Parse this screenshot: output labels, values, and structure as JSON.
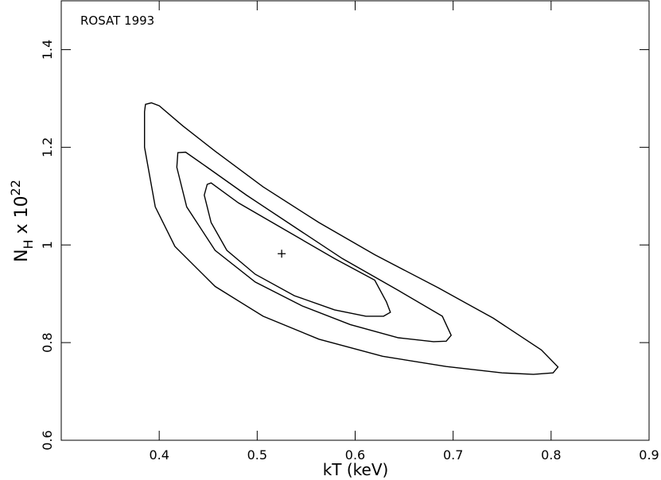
{
  "chart_data": {
    "type": "contour",
    "annotation": "ROSAT 1993",
    "xlabel": "kT (keV)",
    "ylabel": {
      "base": "N",
      "sub": "H",
      "mid": " x 10",
      "sup": "22"
    },
    "xlim": [
      0.3,
      0.9
    ],
    "xticks": [
      0.4,
      0.5,
      0.6,
      0.7,
      0.8,
      0.9
    ],
    "ylim": [
      0.6,
      1.5
    ],
    "yticks": [
      0.6,
      0.8,
      1,
      1.2,
      1.4
    ],
    "color": "#000000",
    "contours": [
      {
        "x": [
          0.386,
          0.392,
          0.4,
          0.424,
          0.457,
          0.506,
          0.563,
          0.62,
          0.685,
          0.741,
          0.79,
          0.807,
          0.802,
          0.782,
          0.75,
          0.693,
          0.628,
          0.563,
          0.506,
          0.457,
          0.416,
          0.396,
          0.385,
          0.385
        ],
        "y": [
          1.288,
          1.291,
          1.285,
          1.244,
          1.192,
          1.119,
          1.046,
          0.98,
          0.912,
          0.85,
          0.785,
          0.75,
          0.738,
          0.735,
          0.738,
          0.751,
          0.772,
          0.807,
          0.854,
          0.915,
          0.997,
          1.078,
          1.2,
          1.273
        ]
      },
      {
        "x": [
          0.419,
          0.427,
          0.449,
          0.489,
          0.538,
          0.587,
          0.644,
          0.689,
          0.698,
          0.693,
          0.68,
          0.644,
          0.595,
          0.546,
          0.498,
          0.457,
          0.428,
          0.418
        ],
        "y": [
          1.189,
          1.19,
          1.159,
          1.102,
          1.037,
          0.972,
          0.907,
          0.854,
          0.815,
          0.803,
          0.802,
          0.81,
          0.837,
          0.875,
          0.924,
          0.989,
          1.078,
          1.159
        ]
      },
      {
        "x": [
          0.449,
          0.453,
          0.481,
          0.53,
          0.579,
          0.62,
          0.632,
          0.636,
          0.629,
          0.611,
          0.579,
          0.538,
          0.498,
          0.469,
          0.453,
          0.446
        ],
        "y": [
          1.124,
          1.127,
          1.086,
          1.029,
          0.972,
          0.928,
          0.883,
          0.862,
          0.854,
          0.854,
          0.867,
          0.896,
          0.94,
          0.989,
          1.046,
          1.102
        ]
      }
    ],
    "best_fit": {
      "x": 0.525,
      "y": 0.982
    }
  }
}
